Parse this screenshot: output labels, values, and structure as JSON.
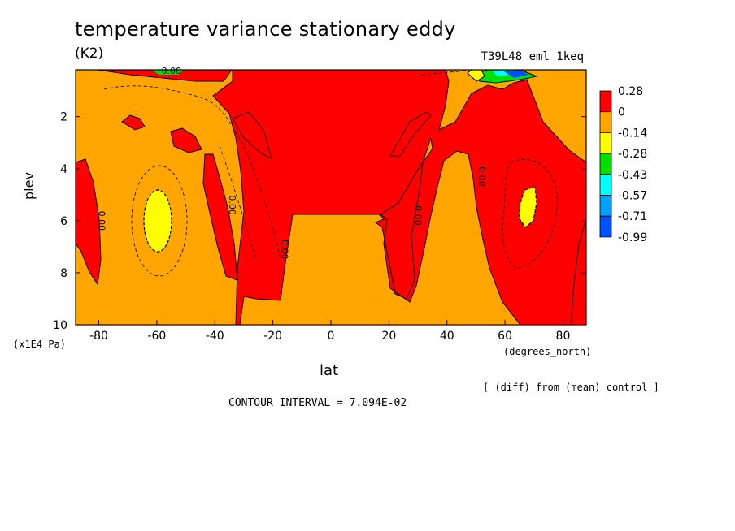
{
  "chart_data": {
    "type": "heatmap",
    "title": "temperature variance stationary eddy",
    "units": "(K2)",
    "run_label": "T39L48_eml_1keq",
    "xlabel": "lat",
    "ylabel": "plev",
    "x_units": "(degrees_north)",
    "y_units": "(x1E4 Pa)",
    "xlim": [
      -88,
      88
    ],
    "ylim": [
      10,
      0.2
    ],
    "x_ticks": [
      -80,
      -60,
      -40,
      -20,
      0,
      20,
      40,
      60,
      80
    ],
    "y_ticks": [
      2,
      4,
      6,
      8,
      10
    ],
    "note": "[ (diff) from (mean) control ]",
    "contour_interval_text": "CONTOUR INTERVAL = 7.094E-02",
    "contour_labels": [
      "0.00",
      "0.00",
      "0.00",
      "0.00",
      "0.00",
      "0.00"
    ],
    "colorbar": {
      "levels": [
        "0.28",
        "0",
        "-0.14",
        "-0.28",
        "-0.43",
        "-0.57",
        "-0.71",
        "-0.99"
      ],
      "colors": [
        "#ff0000",
        "#ffa500",
        "#ffff00",
        "#00e000",
        "#00ffff",
        "#00a0ff",
        "#0050ff"
      ]
    },
    "regions": [
      {
        "name": "central positive band",
        "range": "0 to 0.28",
        "color": "#ff0000"
      },
      {
        "name": "southern positive tongue near 38S",
        "range": "0 to 0.28",
        "color": "#ff0000"
      },
      {
        "name": "northern negative minimum near 65N 5.5",
        "range": "-0.28 to -0.14",
        "color": "#ffff00"
      },
      {
        "name": "southern negative minimum near 60S 5.5",
        "range": "-0.28 to -0.14",
        "color": "#ffff00"
      },
      {
        "name": "upper-level minimum near 65N 0.3",
        "range": "-0.99 to -0.28",
        "color": "#00e000"
      }
    ]
  }
}
